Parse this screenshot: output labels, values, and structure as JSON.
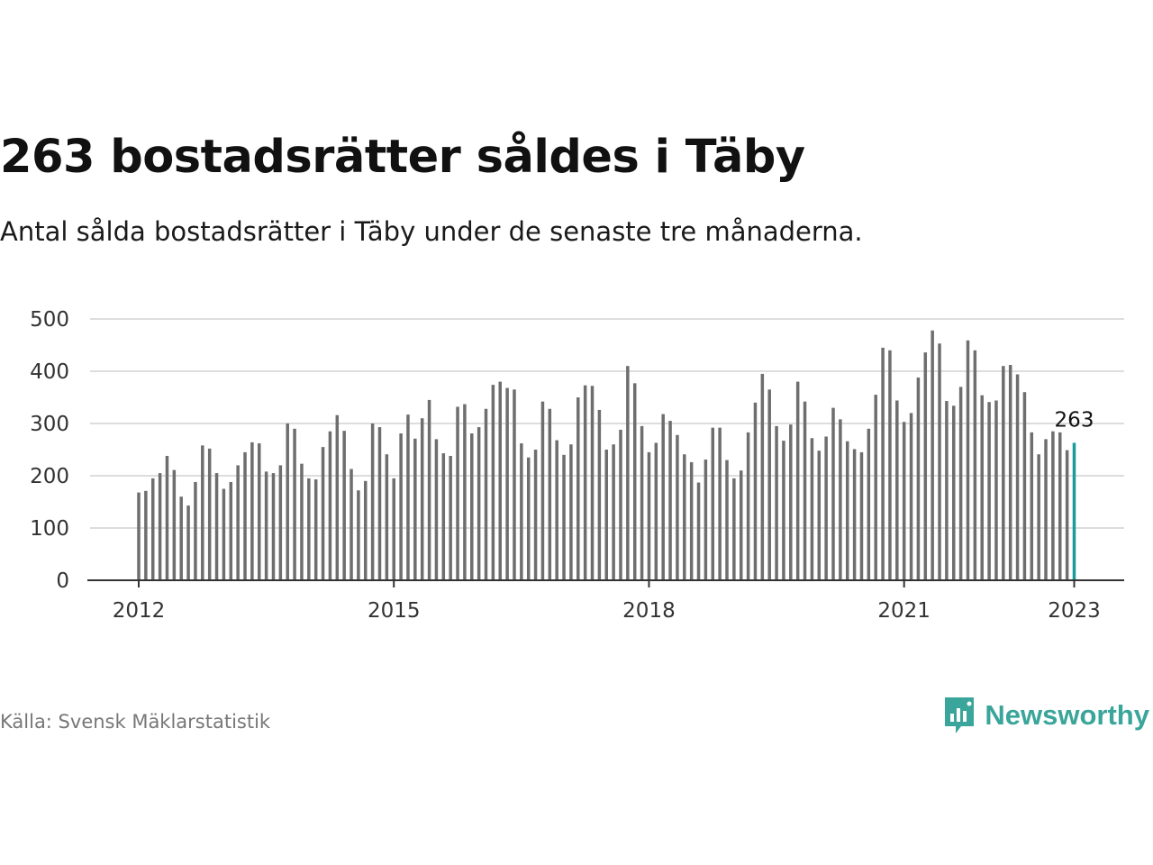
{
  "title": "263 bostadsrätter såldes i Täby",
  "subtitle": "Antal sålda bostadsrätter i Täby under de senaste tre månaderna.",
  "source": "Källa: Svensk Mäklarstatistik",
  "brand": {
    "name": "Newsworthy",
    "icon": "newsworthy-logo-icon",
    "color": "#3aa59a"
  },
  "colors": {
    "bar": "#6e6e6e",
    "highlight": "#1a9c9c",
    "grid": "#dddddd",
    "axis": "#333333"
  },
  "chart_data": {
    "type": "bar",
    "x_start": "2012-01",
    "x_frequency": "monthly",
    "ylim": [
      0,
      500
    ],
    "yticks": [
      0,
      100,
      200,
      300,
      400,
      500
    ],
    "xticks": [
      "2012",
      "2015",
      "2018",
      "2021",
      "2023"
    ],
    "grid": true,
    "highlight_last": true,
    "annotation": "263",
    "values": [
      168,
      171,
      195,
      205,
      238,
      211,
      160,
      143,
      188,
      258,
      252,
      205,
      175,
      188,
      220,
      245,
      264,
      262,
      208,
      205,
      220,
      300,
      290,
      223,
      195,
      193,
      255,
      285,
      316,
      286,
      213,
      172,
      190,
      300,
      293,
      241,
      195,
      281,
      317,
      271,
      310,
      345,
      270,
      243,
      238,
      332,
      337,
      281,
      293,
      328,
      374,
      380,
      368,
      365,
      262,
      235,
      250,
      342,
      328,
      268,
      240,
      260,
      350,
      373,
      372,
      326,
      250,
      260,
      288,
      410,
      377,
      295,
      245,
      263,
      318,
      305,
      278,
      241,
      226,
      187,
      231,
      292,
      292,
      230,
      195,
      210,
      283,
      340,
      395,
      365,
      295,
      267,
      298,
      380,
      342,
      272,
      248,
      275,
      330,
      308,
      266,
      251,
      245,
      290,
      355,
      445,
      440,
      344,
      303,
      320,
      388,
      436,
      478,
      453,
      343,
      334,
      370,
      459,
      440,
      354,
      341,
      344,
      410,
      412,
      394,
      360,
      283,
      241,
      270,
      285,
      283,
      249,
      263
    ]
  }
}
